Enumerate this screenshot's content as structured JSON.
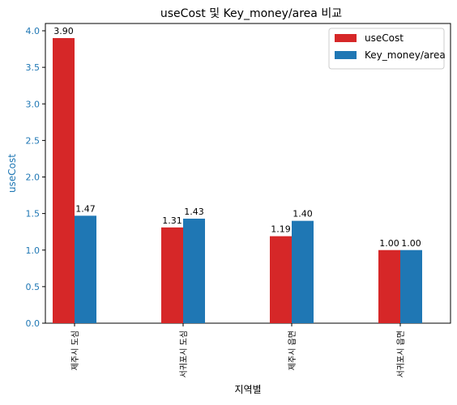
{
  "chart_data": {
    "type": "bar",
    "title": "useCost 및 Key_money/area 비교",
    "xlabel": "지역별",
    "ylabel": "useCost",
    "ylim": [
      0,
      4.0
    ],
    "yticks": [
      "0.0",
      "0.5",
      "1.0",
      "1.5",
      "2.0",
      "2.5",
      "3.0",
      "3.5",
      "4.0"
    ],
    "categories": [
      "제주시 도심",
      "서귀포시 도심",
      "제주시 읍면",
      "서귀포시 읍면"
    ],
    "series": [
      {
        "name": "useCost",
        "color": "#d62728",
        "values": [
          3.9,
          1.31,
          1.19,
          1.0
        ],
        "labels": [
          "3.90",
          "1.31",
          "1.19",
          "1.00"
        ]
      },
      {
        "name": "Key_money/area",
        "color": "#1f77b4",
        "values": [
          1.47,
          1.43,
          1.4,
          1.0
        ],
        "labels": [
          "1.47",
          "1.43",
          "1.40",
          "1.00"
        ]
      }
    ],
    "legend": "top-right",
    "grid": false
  }
}
